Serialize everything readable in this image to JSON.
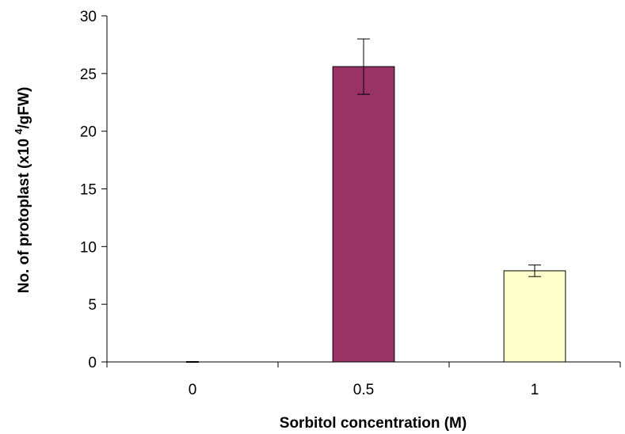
{
  "chart_data": {
    "type": "bar",
    "title": "",
    "xlabel": "Sorbitol concentration (M)",
    "ylabel": "No. of protoplast (x10 4/gFW)",
    "ylabel_parts": {
      "before": "No. of protoplast (x10 ",
      "sup": "4",
      "after": "/gFW)"
    },
    "categories": [
      "0",
      "0.5",
      "1"
    ],
    "values": [
      0,
      25.6,
      7.9
    ],
    "errors": [
      0,
      2.4,
      0.5
    ],
    "bar_colors": [
      "#993366",
      "#993366",
      "#FFFFCC"
    ],
    "ylim": [
      0,
      30
    ],
    "yticks": [
      0,
      5,
      10,
      15,
      20,
      25,
      30
    ],
    "grid": false,
    "legend": "none"
  }
}
